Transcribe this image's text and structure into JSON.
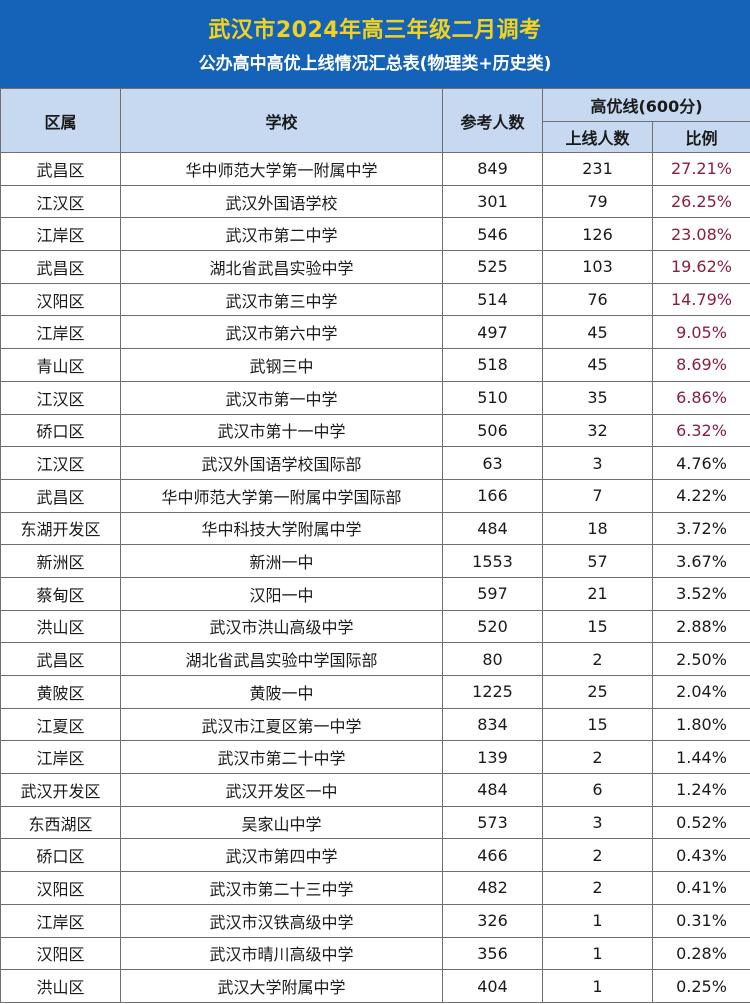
{
  "header": {
    "title": "武汉市2024年高三年级二月调考",
    "subtitle": "公办高中高优上线情况汇总表(物理类+历史类)"
  },
  "columns": {
    "district": "区属",
    "school": "学校",
    "exam_count": "参考人数",
    "high_line": "高优线(600分)",
    "online_count": "上线人数",
    "ratio": "比例"
  },
  "rows": [
    {
      "district": "武昌区",
      "school": "华中师范大学第一附属中学",
      "exam": "849",
      "online": "231",
      "ratio": "27.21%"
    },
    {
      "district": "江汉区",
      "school": "武汉外国语学校",
      "exam": "301",
      "online": "79",
      "ratio": "26.25%"
    },
    {
      "district": "江岸区",
      "school": "武汉市第二中学",
      "exam": "546",
      "online": "126",
      "ratio": "23.08%"
    },
    {
      "district": "武昌区",
      "school": "湖北省武昌实验中学",
      "exam": "525",
      "online": "103",
      "ratio": "19.62%"
    },
    {
      "district": "汉阳区",
      "school": "武汉市第三中学",
      "exam": "514",
      "online": "76",
      "ratio": "14.79%"
    },
    {
      "district": "江岸区",
      "school": "武汉市第六中学",
      "exam": "497",
      "online": "45",
      "ratio": "9.05%"
    },
    {
      "district": "青山区",
      "school": "武钢三中",
      "exam": "518",
      "online": "45",
      "ratio": "8.69%"
    },
    {
      "district": "江汉区",
      "school": "武汉市第一中学",
      "exam": "510",
      "online": "35",
      "ratio": "6.86%"
    },
    {
      "district": "硚口区",
      "school": "武汉市第十一中学",
      "exam": "506",
      "online": "32",
      "ratio": "6.32%"
    },
    {
      "district": "江汉区",
      "school": "武汉外国语学校国际部",
      "exam": "63",
      "online": "3",
      "ratio": "4.76%"
    },
    {
      "district": "武昌区",
      "school": "华中师范大学第一附属中学国际部",
      "exam": "166",
      "online": "7",
      "ratio": "4.22%"
    },
    {
      "district": "东湖开发区",
      "school": "华中科技大学附属中学",
      "exam": "484",
      "online": "18",
      "ratio": "3.72%"
    },
    {
      "district": "新洲区",
      "school": "新洲一中",
      "exam": "1553",
      "online": "57",
      "ratio": "3.67%"
    },
    {
      "district": "蔡甸区",
      "school": "汉阳一中",
      "exam": "597",
      "online": "21",
      "ratio": "3.52%"
    },
    {
      "district": "洪山区",
      "school": "武汉市洪山高级中学",
      "exam": "520",
      "online": "15",
      "ratio": "2.88%"
    },
    {
      "district": "武昌区",
      "school": "湖北省武昌实验中学国际部",
      "exam": "80",
      "online": "2",
      "ratio": "2.50%"
    },
    {
      "district": "黄陂区",
      "school": "黄陂一中",
      "exam": "1225",
      "online": "25",
      "ratio": "2.04%"
    },
    {
      "district": "江夏区",
      "school": "武汉市江夏区第一中学",
      "exam": "834",
      "online": "15",
      "ratio": "1.80%"
    },
    {
      "district": "江岸区",
      "school": "武汉市第二十中学",
      "exam": "139",
      "online": "2",
      "ratio": "1.44%"
    },
    {
      "district": "武汉开发区",
      "school": "武汉开发区一中",
      "exam": "484",
      "online": "6",
      "ratio": "1.24%"
    },
    {
      "district": "东西湖区",
      "school": "吴家山中学",
      "exam": "573",
      "online": "3",
      "ratio": "0.52%"
    },
    {
      "district": "硚口区",
      "school": "武汉市第四中学",
      "exam": "466",
      "online": "2",
      "ratio": "0.43%"
    },
    {
      "district": "汉阳区",
      "school": "武汉市第二十三中学",
      "exam": "482",
      "online": "2",
      "ratio": "0.41%"
    },
    {
      "district": "江岸区",
      "school": "武汉市汉铁高级中学",
      "exam": "326",
      "online": "1",
      "ratio": "0.31%"
    },
    {
      "district": "汉阳区",
      "school": "武汉市晴川高级中学",
      "exam": "356",
      "online": "1",
      "ratio": "0.28%"
    },
    {
      "district": "洪山区",
      "school": "武汉大学附属中学",
      "exam": "404",
      "online": "1",
      "ratio": "0.25%"
    }
  ],
  "colors": {
    "header_bg": "#1563b8",
    "title": "#f2d21c",
    "subtitle": "#ffffff",
    "column_header_bg": "#c7d9f0",
    "ratio_highlight": "#8a1e3c"
  },
  "highlighted_ratio_rows": 9
}
